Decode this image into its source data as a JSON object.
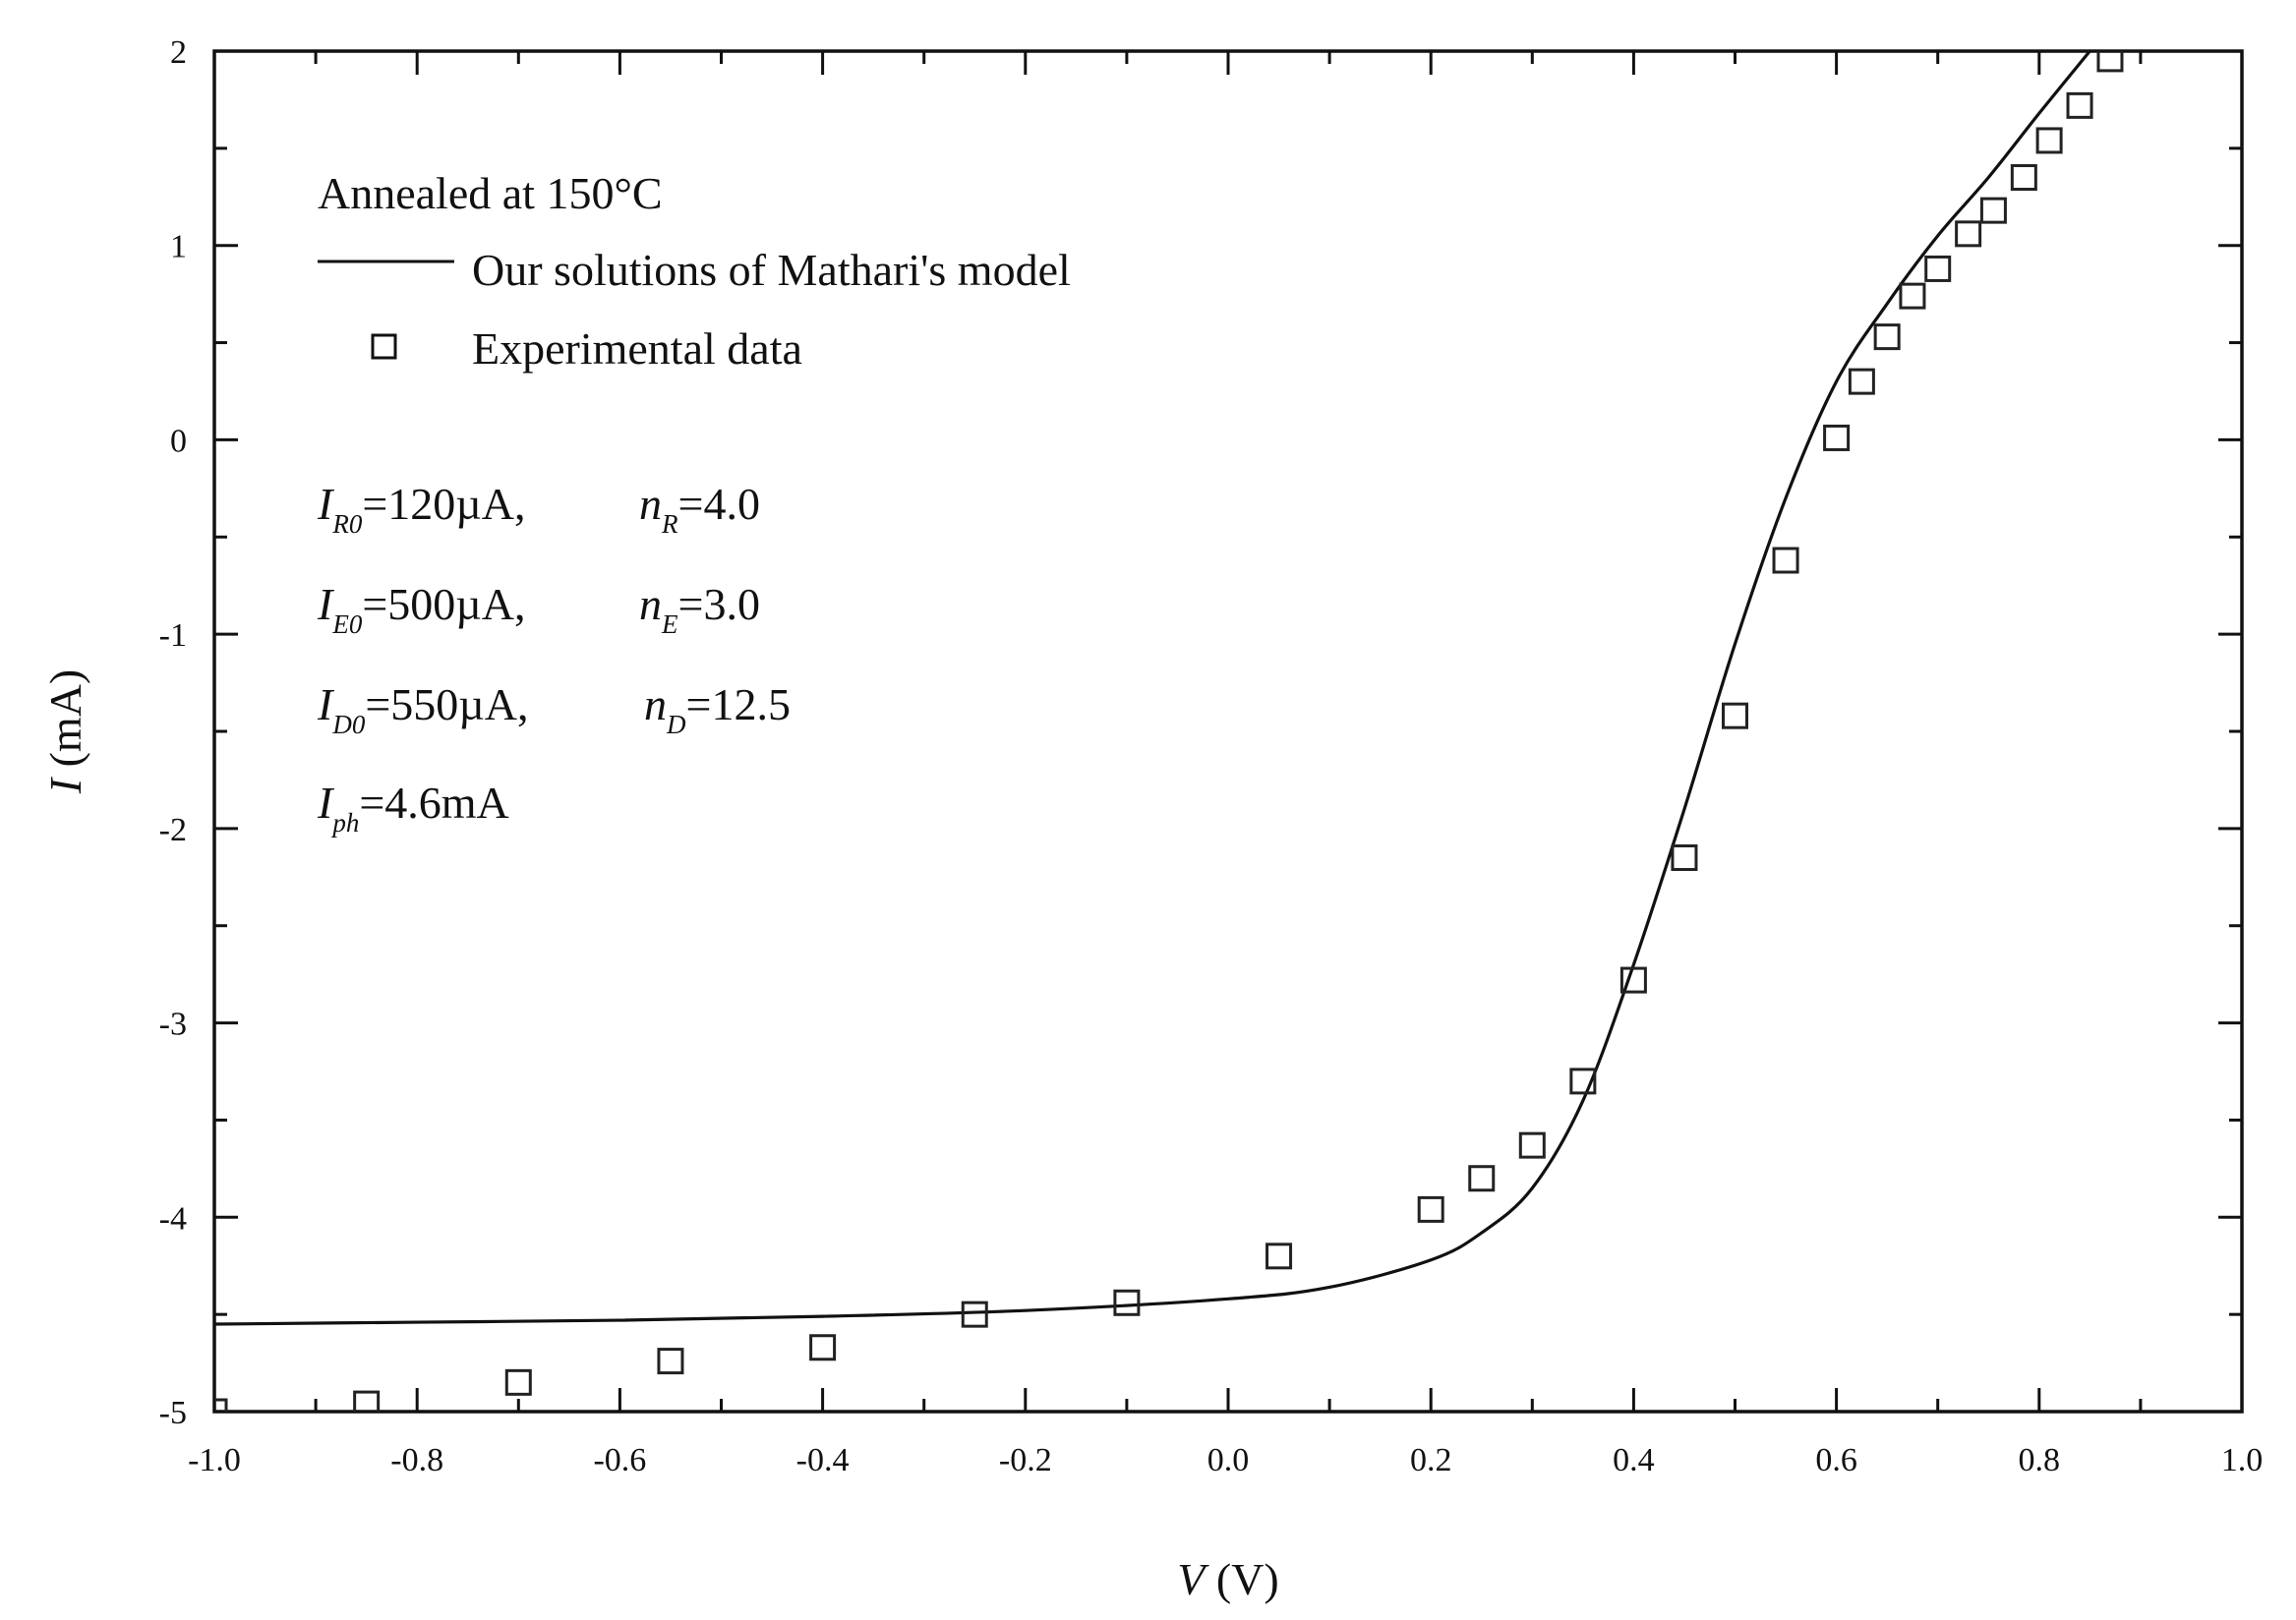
{
  "chart_data": {
    "type": "line",
    "xlabel": {
      "symbol": "V",
      "unit": " (V)"
    },
    "ylabel": {
      "symbol": "I",
      "unit": " (mA)"
    },
    "xlim": [
      -1.0,
      1.0
    ],
    "ylim": [
      -5,
      2
    ],
    "x_ticks": [
      "-1.0",
      "-0.8",
      "-0.6",
      "-0.4",
      "-0.2",
      "0.0",
      "0.2",
      "0.4",
      "0.6",
      "0.8",
      "1.0"
    ],
    "y_ticks": [
      "2",
      "1",
      "0",
      "-1",
      "-2",
      "-3",
      "-4",
      "-5"
    ],
    "legend": {
      "title": "Annealed at 150°C",
      "model_label": "Our solutions of Mathari's model",
      "data_label": "Experimental data"
    },
    "parameters": [
      {
        "sym1": "I",
        "sub1": "R0",
        "val1": "=120µA,",
        "sym2": "n",
        "sub2": "R",
        "val2": "=4.0"
      },
      {
        "sym1": "I",
        "sub1": "E0",
        "val1": "=500µA,",
        "sym2": "n",
        "sub2": "E",
        "val2": "=3.0"
      },
      {
        "sym1": "I",
        "sub1": "D0",
        "val1": "=550µA,",
        "sym2": "n",
        "sub2": "D",
        "val2": "=12.5"
      },
      {
        "sym1": "I",
        "sub1": "ph",
        "val1": "=4.6mA",
        "sym2": "",
        "sub2": "",
        "val2": ""
      }
    ],
    "series": [
      {
        "name": "Our solutions of Mathari's model",
        "style": "line",
        "x": [
          -1.0,
          -0.8,
          -0.6,
          -0.4,
          -0.2,
          0.0,
          0.1,
          0.2,
          0.25,
          0.3,
          0.35,
          0.4,
          0.45,
          0.5,
          0.55,
          0.6,
          0.65,
          0.7,
          0.75,
          0.8,
          0.85
        ],
        "y": [
          -4.55,
          -4.54,
          -4.53,
          -4.51,
          -4.48,
          -4.42,
          -4.36,
          -4.22,
          -4.08,
          -3.85,
          -3.4,
          -2.7,
          -1.9,
          -1.05,
          -0.3,
          0.3,
          0.7,
          1.05,
          1.35,
          1.68,
          2.0
        ]
      },
      {
        "name": "Experimental data",
        "style": "square-markers",
        "x": [
          -1.0,
          -0.85,
          -0.7,
          -0.55,
          -0.4,
          -0.25,
          -0.1,
          0.05,
          0.2,
          0.25,
          0.3,
          0.35,
          0.4,
          0.45,
          0.5,
          0.55,
          0.6,
          0.625,
          0.65,
          0.675,
          0.7,
          0.73,
          0.755,
          0.785,
          0.81,
          0.84,
          0.87
        ],
        "y": [
          -5.0,
          -4.96,
          -4.85,
          -4.74,
          -4.67,
          -4.5,
          -4.44,
          -4.2,
          -3.96,
          -3.8,
          -3.63,
          -3.3,
          -2.78,
          -2.15,
          -1.42,
          -0.62,
          0.01,
          0.3,
          0.53,
          0.74,
          0.88,
          1.06,
          1.18,
          1.35,
          1.54,
          1.72,
          1.96
        ]
      }
    ]
  }
}
